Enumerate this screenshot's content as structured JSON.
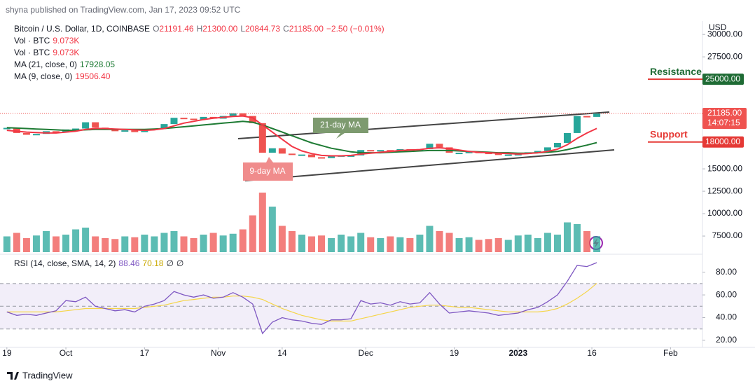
{
  "header": {
    "published": "shyna published on TradingView.com, Jan 17, 2023 09:52 UTC",
    "symbol": "Bitcoin / U.S. Dollar, 1D, COINBASE",
    "ohlc": [
      {
        "key": "O",
        "value": "21191.46"
      },
      {
        "key": "H",
        "value": "21300.00"
      },
      {
        "key": "L",
        "value": "20844.73"
      },
      {
        "key": "C",
        "value": "21185.00"
      }
    ],
    "change": "−2.50 (−0.01%)",
    "vol_legend": [
      "Vol · BTC",
      "Vol · BTC"
    ]
  },
  "footer": {
    "brand": "TradingView"
  },
  "chart_data": {
    "type": "candlestick",
    "currency": "USD",
    "up_color": "#26a69a",
    "down_color": "#ef5350",
    "xlim": [
      -1.4,
      141.5
    ],
    "xticks": [
      {
        "value": 0,
        "label": "19"
      },
      {
        "value": 12,
        "label": "Oct"
      },
      {
        "value": 28,
        "label": "17"
      },
      {
        "value": 43,
        "label": "Nov"
      },
      {
        "value": 56,
        "label": "14"
      },
      {
        "value": 73,
        "label": "Dec"
      },
      {
        "value": 91,
        "label": "19"
      },
      {
        "value": 104,
        "label": "2023"
      },
      {
        "value": 119,
        "label": "16"
      },
      {
        "value": 135,
        "label": "Feb"
      }
    ],
    "ylim": [
      5550,
      31500
    ],
    "yticks": [
      {
        "value": 7500,
        "label": "7500.00"
      },
      {
        "value": 10000,
        "label": "10000.00"
      },
      {
        "value": 12500,
        "label": "12500.00"
      },
      {
        "value": 15000,
        "label": "15000.00"
      },
      {
        "value": 27500,
        "label": "27500.00"
      },
      {
        "value": 30000,
        "label": "30000.00"
      }
    ],
    "x": [
      0,
      2,
      4,
      6,
      8,
      10,
      12,
      14,
      16,
      18,
      20,
      22,
      24,
      26,
      28,
      30,
      32,
      34,
      36,
      38,
      40,
      42,
      44,
      46,
      48,
      50,
      52,
      54,
      56,
      58,
      60,
      62,
      64,
      66,
      68,
      70,
      72,
      74,
      76,
      78,
      80,
      82,
      84,
      86,
      88,
      90,
      92,
      94,
      96,
      98,
      100,
      102,
      104,
      106,
      108,
      110,
      112,
      114,
      116,
      118,
      120
    ],
    "close": [
      19500,
      19000,
      18800,
      18900,
      19200,
      19100,
      19400,
      19500,
      20200,
      19600,
      19400,
      19200,
      19300,
      19100,
      19400,
      19500,
      20000,
      20700,
      20600,
      20500,
      20800,
      20600,
      20900,
      21200,
      20900,
      20100,
      16800,
      17300,
      16700,
      16600,
      16600,
      16300,
      16200,
      16500,
      16500,
      16500,
      17100,
      17000,
      17100,
      17000,
      17200,
      17100,
      17200,
      17800,
      17400,
      16800,
      16800,
      16900,
      16800,
      16700,
      16600,
      16600,
      16650,
      16850,
      17000,
      17400,
      17900,
      19000,
      20900,
      20800,
      21185
    ],
    "ma": [
      {
        "name": "MA (21, close, 0)",
        "color": "#1e7b34",
        "legend_value": "17928.05",
        "values": [
          19600,
          19550,
          19500,
          19450,
          19400,
          19350,
          19300,
          19300,
          19350,
          19400,
          19400,
          19400,
          19400,
          19400,
          19400,
          19450,
          19500,
          19600,
          19700,
          19800,
          19900,
          20000,
          20100,
          20200,
          20300,
          20200,
          19900,
          19500,
          19100,
          18700,
          18300,
          17900,
          17600,
          17300,
          17100,
          16900,
          16800,
          16800,
          16800,
          16850,
          16900,
          16950,
          17000,
          17050,
          17050,
          17050,
          17000,
          16950,
          16900,
          16850,
          16800,
          16800,
          16750,
          16750,
          16800,
          16850,
          16950,
          17150,
          17400,
          17650,
          17928.05
        ]
      },
      {
        "name": "MA (9, close, 0)",
        "color": "#f23645",
        "legend_value": "19506.40",
        "values": [
          19300,
          19200,
          19100,
          19050,
          19000,
          19000,
          19100,
          19200,
          19400,
          19500,
          19500,
          19450,
          19400,
          19350,
          19300,
          19350,
          19500,
          19800,
          20100,
          20300,
          20500,
          20650,
          20750,
          20850,
          20900,
          20700,
          19900,
          19100,
          18300,
          17500,
          17000,
          16700,
          16500,
          16450,
          16450,
          16500,
          16650,
          16750,
          16850,
          16950,
          17050,
          17100,
          17150,
          17300,
          17350,
          17250,
          17100,
          16950,
          16850,
          16800,
          16750,
          16700,
          16650,
          16700,
          16800,
          16950,
          17200,
          17700,
          18400,
          19000,
          19506.4
        ]
      }
    ],
    "volume": {
      "legend_value": "9.073K",
      "ylim": [
        0,
        40000
      ],
      "values": [
        9000,
        11000,
        8000,
        9500,
        12000,
        9000,
        10000,
        13000,
        14000,
        9000,
        8000,
        7500,
        9000,
        8500,
        10000,
        9000,
        11000,
        12000,
        9000,
        8000,
        10000,
        11000,
        9500,
        10500,
        13000,
        21000,
        34000,
        26000,
        15000,
        12000,
        10000,
        9000,
        9500,
        8000,
        10000,
        9000,
        11000,
        8500,
        8000,
        9000,
        8500,
        8000,
        10000,
        15000,
        12000,
        11000,
        8000,
        8500,
        7000,
        7500,
        8000,
        7000,
        9500,
        10000,
        8000,
        11000,
        10000,
        17000,
        16000,
        12000,
        9073
      ]
    },
    "last_price": {
      "value": 21185,
      "label": "21185.00",
      "countdown": "14:07:15"
    },
    "levels": [
      {
        "name": "Resistance",
        "value": 25000,
        "label": "25000.00",
        "color": "#1e6b34"
      },
      {
        "name": "Support",
        "value": 18000,
        "label": "18000.00",
        "color": "#e53935"
      }
    ],
    "annotations": [
      "21-day MA",
      "9-day MA"
    ],
    "rsi": {
      "name": "RSI (14, close, SMA, 14, 2)",
      "color": "#7e57c2",
      "sma_color": "#f5d547",
      "empty": [
        "∅",
        "∅"
      ],
      "ylim": [
        15,
        94
      ],
      "bands": [
        30,
        50,
        70
      ],
      "yticks": [
        {
          "value": 20,
          "label": "20.00"
        },
        {
          "value": 40,
          "label": "40.00"
        },
        {
          "value": 60,
          "label": "60.00"
        },
        {
          "value": 80,
          "label": "80.00"
        }
      ],
      "values": [
        45,
        42,
        43,
        42,
        44,
        46,
        55,
        54,
        58,
        50,
        48,
        46,
        47,
        45,
        50,
        52,
        55,
        63,
        60,
        58,
        60,
        57,
        58,
        62,
        58,
        52,
        26,
        36,
        40,
        38,
        37,
        35,
        34,
        38,
        38,
        39,
        55,
        52,
        53,
        51,
        54,
        52,
        53,
        62,
        52,
        44,
        45,
        46,
        45,
        44,
        42,
        43,
        44,
        47,
        49,
        54,
        60,
        72,
        86,
        85,
        88.46
      ],
      "sma": [
        45,
        45,
        45,
        45,
        45,
        45,
        46,
        47,
        48,
        48,
        48,
        48,
        48,
        48,
        49,
        50,
        51,
        53,
        55,
        56,
        57,
        58,
        58,
        59,
        59,
        58,
        56,
        52,
        48,
        45,
        42,
        40,
        38,
        37,
        37,
        37,
        39,
        41,
        43,
        45,
        47,
        49,
        50,
        51,
        51,
        50,
        49,
        49,
        48,
        47,
        46,
        45,
        45,
        45,
        45,
        46,
        48,
        52,
        57,
        63,
        70.18
      ]
    }
  }
}
